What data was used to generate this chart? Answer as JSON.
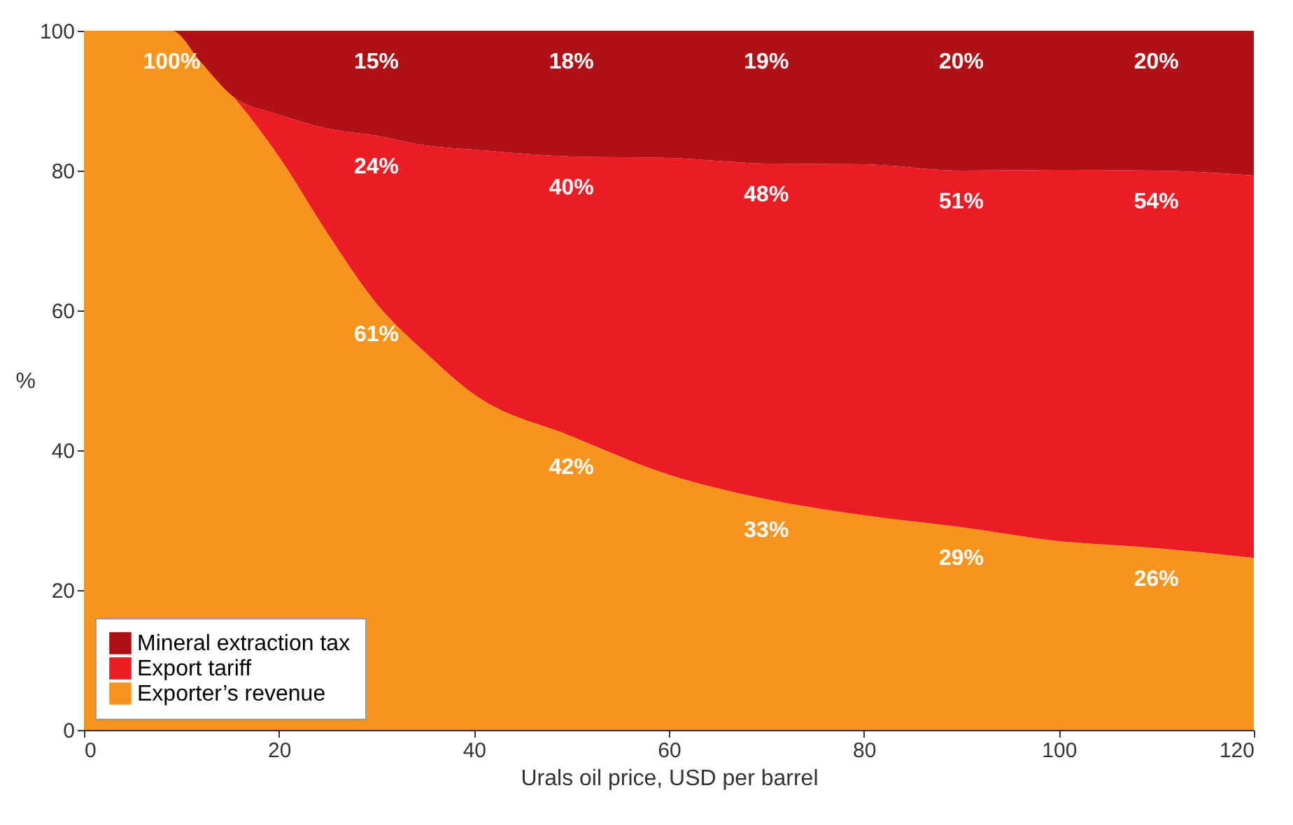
{
  "chart_data": {
    "type": "area",
    "stacked": true,
    "xlabel": "Urals oil price, USD per barrel",
    "ylabel": "%",
    "x": [
      0,
      5,
      9,
      12,
      15.3,
      20,
      25,
      30,
      35,
      40,
      50,
      60,
      70,
      80,
      90,
      100,
      110,
      120
    ],
    "xlim": [
      0,
      120
    ],
    "xticks": [
      0,
      20,
      40,
      60,
      80,
      100,
      120
    ],
    "ylim": [
      0,
      100
    ],
    "yticks": [
      0,
      20,
      40,
      60,
      80,
      100
    ],
    "grid": false,
    "legend": "bottom left",
    "series": [
      {
        "name": "Exporter’s revenue",
        "color": "#f7941d",
        "values": [
          100,
          100,
          100,
          95.5,
          90.6,
          82,
          71,
          61,
          54,
          48,
          42,
          36.5,
          33,
          30.7,
          29,
          27,
          26,
          24.6
        ],
        "value_labels": [
          null,
          null,
          "100%",
          null,
          null,
          null,
          null,
          "61%",
          null,
          null,
          "42%",
          null,
          "33%",
          null,
          "29%",
          null,
          "26%",
          null
        ]
      },
      {
        "name": "Export tariff",
        "color": "#ec1c24",
        "values": [
          0,
          0,
          0,
          0,
          0,
          6,
          15,
          24,
          29.6,
          35,
          40,
          45.3,
          48,
          50.2,
          51,
          53.1,
          54,
          54.7
        ],
        "value_labels": [
          null,
          null,
          null,
          null,
          null,
          null,
          null,
          "24%",
          null,
          null,
          "40%",
          null,
          "48%",
          null,
          "51%",
          null,
          "54%",
          null
        ]
      },
      {
        "name": "Mineral extraction tax",
        "color": "#b01117",
        "values": [
          0,
          0,
          0,
          4.5,
          9.4,
          12,
          14,
          15,
          16.4,
          17,
          18,
          18.2,
          19,
          19.1,
          20,
          19.9,
          20,
          20.7
        ],
        "value_labels": [
          null,
          null,
          null,
          null,
          null,
          null,
          null,
          "15%",
          null,
          null,
          "18%",
          null,
          "19%",
          null,
          "20%",
          null,
          "20%",
          null
        ]
      }
    ]
  }
}
